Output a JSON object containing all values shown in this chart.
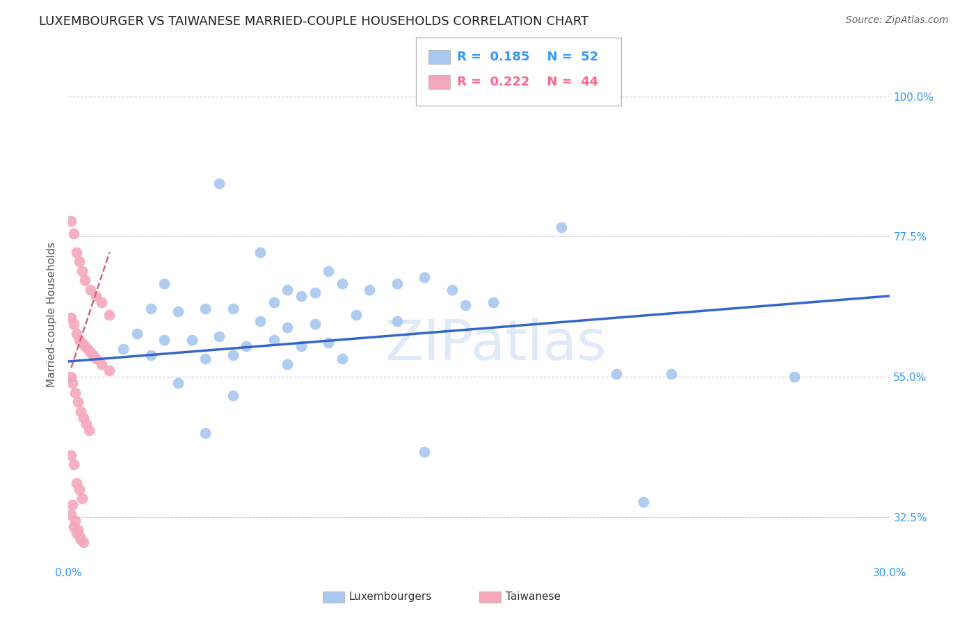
{
  "title": "LUXEMBOURGER VS TAIWANESE MARRIED-COUPLE HOUSEHOLDS CORRELATION CHART",
  "source": "Source: ZipAtlas.com",
  "ylabel": "Married-couple Households",
  "watermark": "ZIPatlas",
  "xlim": [
    0.0,
    30.0
  ],
  "ylim": [
    25.0,
    105.0
  ],
  "blue_color": "#a8c8f0",
  "pink_color": "#f4a8bc",
  "blue_line_color": "#3366cc",
  "pink_line_color": "#cc6680",
  "blue_scatter_x": [
    3.5,
    5.5,
    7.0,
    7.5,
    8.0,
    8.5,
    9.0,
    9.5,
    10.0,
    11.0,
    12.0,
    13.0,
    14.0,
    15.5,
    18.0,
    20.0,
    3.0,
    4.0,
    5.0,
    6.0,
    7.0,
    8.0,
    9.0,
    10.5,
    12.0,
    14.5,
    2.5,
    3.5,
    4.5,
    5.5,
    6.5,
    7.5,
    8.5,
    9.5,
    2.0,
    3.0,
    5.0,
    6.0,
    8.0,
    10.0,
    4.0,
    6.0,
    13.0,
    22.0,
    26.5,
    21.0,
    5.0
  ],
  "blue_scatter_y": [
    70.0,
    86.0,
    75.0,
    67.0,
    69.0,
    68.0,
    68.5,
    72.0,
    70.0,
    69.0,
    70.0,
    71.0,
    69.0,
    67.0,
    79.0,
    55.5,
    66.0,
    65.5,
    66.0,
    66.0,
    64.0,
    63.0,
    63.5,
    65.0,
    64.0,
    66.5,
    62.0,
    61.0,
    61.0,
    61.5,
    60.0,
    61.0,
    60.0,
    60.5,
    59.5,
    58.5,
    58.0,
    58.5,
    57.0,
    58.0,
    54.0,
    52.0,
    43.0,
    55.5,
    55.0,
    35.0,
    46.0
  ],
  "pink_scatter_x": [
    0.1,
    0.2,
    0.3,
    0.4,
    0.5,
    0.6,
    0.8,
    1.0,
    1.2,
    1.5,
    0.1,
    0.2,
    0.3,
    0.4,
    0.5,
    0.6,
    0.7,
    0.8,
    0.9,
    1.0,
    1.2,
    1.5,
    0.1,
    0.15,
    0.25,
    0.35,
    0.45,
    0.55,
    0.65,
    0.75,
    0.1,
    0.2,
    0.3,
    0.4,
    0.5,
    0.1,
    0.2,
    0.3,
    0.4,
    0.15,
    0.25,
    0.35,
    0.45,
    0.55
  ],
  "pink_scatter_y": [
    80.0,
    78.0,
    75.0,
    73.5,
    72.0,
    70.5,
    69.0,
    68.0,
    67.0,
    65.0,
    64.5,
    63.5,
    62.0,
    61.0,
    60.5,
    60.0,
    59.5,
    59.0,
    58.5,
    58.0,
    57.0,
    56.0,
    55.0,
    54.0,
    52.5,
    51.0,
    49.5,
    48.5,
    47.5,
    46.5,
    42.5,
    41.0,
    38.0,
    37.0,
    35.5,
    33.0,
    31.0,
    30.0,
    29.5,
    34.5,
    32.0,
    30.5,
    29.0,
    28.5
  ],
  "blue_line_x": [
    0.0,
    30.0
  ],
  "blue_line_y": [
    57.5,
    68.0
  ],
  "pink_line_x": [
    0.1,
    1.5
  ],
  "pink_line_y": [
    56.5,
    75.0
  ],
  "background_color": "#ffffff",
  "grid_color": "#d0d0d0",
  "title_fontsize": 13,
  "axis_label_fontsize": 11,
  "tick_fontsize": 11,
  "legend_fontsize": 13
}
